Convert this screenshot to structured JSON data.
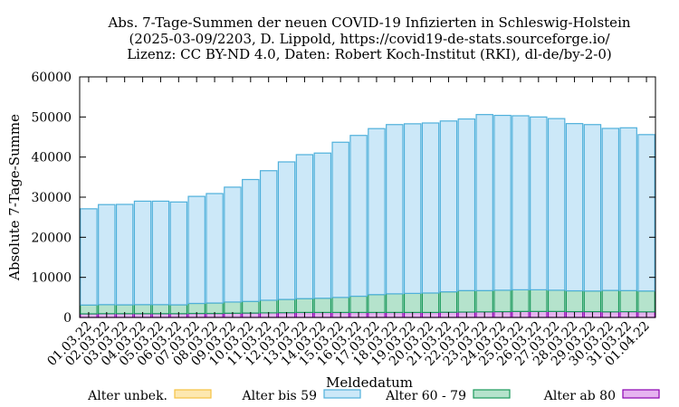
{
  "chart_data": {
    "type": "bar",
    "stacked": true,
    "title_lines": [
      "Abs. 7-Tage-Summen der neuen COVID-19 Infizierten in Schleswig-Holstein",
      "(2025-03-09/2203, D. Lippold, https://covid19-de-stats.sourceforge.io/",
      "Lizenz: CC BY-ND 4.0, Daten: Robert Koch-Institut (RKI), dl-de/by-2-0)"
    ],
    "xlabel": "Meldedatum",
    "ylabel": "Absolute 7-Tage-Summe",
    "ylim": [
      0,
      60000
    ],
    "yticks": [
      0,
      10000,
      20000,
      30000,
      40000,
      50000,
      60000
    ],
    "grid": false,
    "legend_position": "bottom",
    "categories": [
      "01.03.22",
      "02.03.22",
      "03.03.22",
      "04.03.22",
      "05.03.22",
      "06.03.22",
      "07.03.22",
      "08.03.22",
      "09.03.22",
      "10.03.22",
      "11.03.22",
      "12.03.22",
      "13.03.22",
      "14.03.22",
      "15.03.22",
      "16.03.22",
      "17.03.22",
      "18.03.22",
      "19.03.22",
      "20.03.22",
      "21.03.22",
      "22.03.22",
      "23.03.22",
      "24.03.22",
      "25.03.22",
      "26.03.22",
      "27.03.22",
      "28.03.22",
      "29.03.22",
      "30.03.22",
      "31.03.22",
      "01.04.22"
    ],
    "series": [
      {
        "name": "Alter unbek.",
        "color": "#f5c242",
        "fill": "#fde8b0",
        "values": [
          0,
          0,
          0,
          0,
          0,
          0,
          0,
          0,
          0,
          0,
          0,
          0,
          0,
          0,
          0,
          0,
          0,
          0,
          0,
          0,
          0,
          0,
          0,
          0,
          0,
          0,
          0,
          0,
          0,
          0,
          0,
          0
        ]
      },
      {
        "name": "Alter ab 80",
        "color": "#8b00b0",
        "fill": "#e6b3f0",
        "values": [
          900,
          950,
          950,
          950,
          950,
          950,
          1000,
          1000,
          1050,
          1100,
          1150,
          1200,
          1250,
          1250,
          1250,
          1250,
          1250,
          1250,
          1250,
          1250,
          1300,
          1350,
          1400,
          1450,
          1500,
          1500,
          1500,
          1450,
          1450,
          1400,
          1450,
          1400
        ]
      },
      {
        "name": "Alter 60 - 79",
        "color": "#1a9a5c",
        "fill": "#b5e3cc",
        "values": [
          2200,
          2250,
          2200,
          2250,
          2250,
          2200,
          2500,
          2600,
          2800,
          2900,
          3150,
          3300,
          3450,
          3550,
          3750,
          4050,
          4450,
          4650,
          4750,
          4850,
          5100,
          5350,
          5300,
          5350,
          5400,
          5400,
          5300,
          5200,
          5150,
          5350,
          5250,
          5200
        ]
      },
      {
        "name": "Alter bis 59",
        "color": "#4fb0db",
        "fill": "#cce8f8",
        "values": [
          24000,
          24950,
          25050,
          25800,
          25800,
          25650,
          26700,
          27300,
          28650,
          30400,
          32300,
          34300,
          35900,
          36200,
          38700,
          40100,
          41400,
          42200,
          42300,
          42400,
          42600,
          42800,
          43900,
          43600,
          43400,
          43100,
          42800,
          41700,
          41500,
          40400,
          40600,
          39000
        ]
      }
    ]
  }
}
